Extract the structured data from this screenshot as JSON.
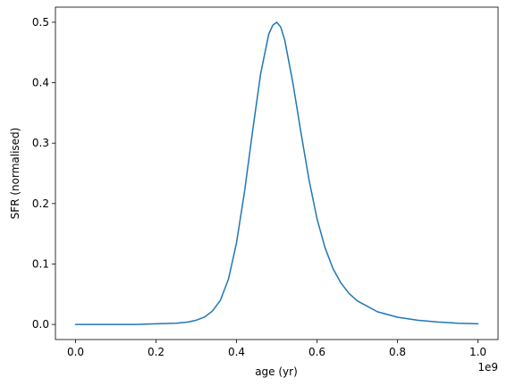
{
  "chart_data": {
    "type": "line",
    "title": "",
    "xlabel": "age (yr)",
    "ylabel": "SFR (normalised)",
    "x_offset_label": "1e9",
    "xlim": [
      -0.05,
      1.05
    ],
    "ylim": [
      -0.025,
      0.525
    ],
    "grid": false,
    "legend": "none",
    "x_ticks": [
      0.0,
      0.2,
      0.4,
      0.6,
      0.8,
      1.0
    ],
    "x_tick_labels": [
      "0.0",
      "0.2",
      "0.4",
      "0.6",
      "0.8",
      "1.0"
    ],
    "y_ticks": [
      0.0,
      0.1,
      0.2,
      0.3,
      0.4,
      0.5
    ],
    "y_tick_labels": [
      "0.0",
      "0.1",
      "0.2",
      "0.3",
      "0.4",
      "0.5"
    ],
    "series": [
      {
        "color": "#1f77b4",
        "x": [
          0.0,
          0.05,
          0.1,
          0.15,
          0.2,
          0.25,
          0.28,
          0.3,
          0.32,
          0.34,
          0.36,
          0.38,
          0.4,
          0.42,
          0.44,
          0.46,
          0.48,
          0.49,
          0.5,
          0.51,
          0.52,
          0.54,
          0.56,
          0.58,
          0.6,
          0.62,
          0.64,
          0.66,
          0.68,
          0.7,
          0.75,
          0.8,
          0.85,
          0.9,
          0.95,
          1.0
        ],
        "values": [
          0.0,
          0.0,
          0.0,
          0.0,
          0.001,
          0.002,
          0.004,
          0.007,
          0.012,
          0.022,
          0.04,
          0.075,
          0.135,
          0.22,
          0.32,
          0.415,
          0.48,
          0.495,
          0.5,
          0.492,
          0.47,
          0.4,
          0.318,
          0.24,
          0.175,
          0.127,
          0.092,
          0.068,
          0.051,
          0.039,
          0.021,
          0.012,
          0.007,
          0.004,
          0.002,
          0.001
        ]
      }
    ]
  }
}
